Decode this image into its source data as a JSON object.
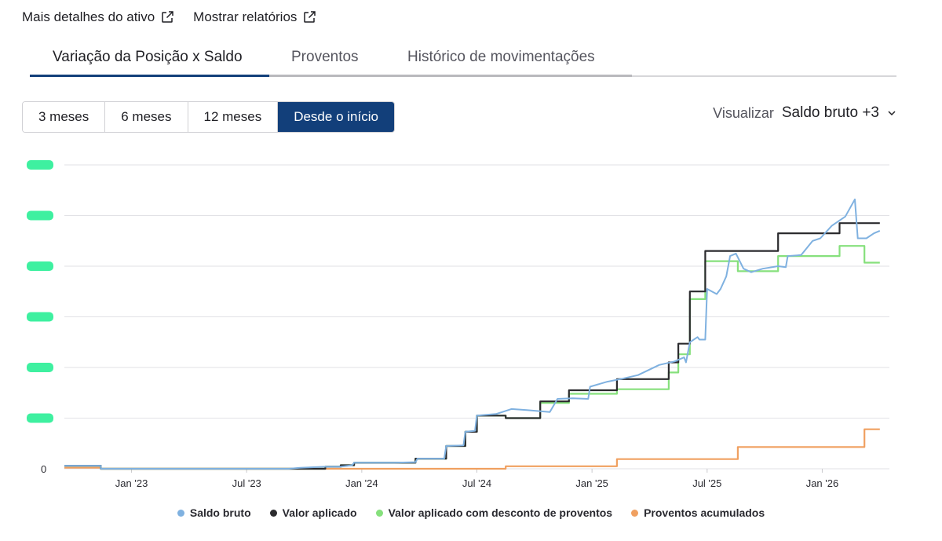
{
  "links": {
    "asset_details": "Mais detalhes do ativo",
    "show_reports": "Mostrar relatórios"
  },
  "tabs": [
    {
      "label": "Variação da Posição x Saldo",
      "active": true
    },
    {
      "label": "Proventos",
      "active": false
    },
    {
      "label": "Histórico de movimentações",
      "active": false
    }
  ],
  "periods": [
    {
      "label": "3 meses",
      "active": false
    },
    {
      "label": "6 meses",
      "active": false
    },
    {
      "label": "12 meses",
      "active": false
    },
    {
      "label": "Desde o início",
      "active": true
    }
  ],
  "visualizar": {
    "label": "Visualizar",
    "selected": "Saldo bruto +3"
  },
  "colors": {
    "accent": "#123f7a",
    "saldo_bruto": "#7fb1e0",
    "valor_aplicado": "#2b2b2e",
    "valor_desconto": "#86e07c",
    "proventos": "#f0a060",
    "redaction": "#3ef0a0",
    "grid": "#e2e2e6"
  },
  "chart_data": {
    "type": "line",
    "title": "",
    "xlabel": "",
    "ylabel": "",
    "ylim": [
      0,
      6
    ],
    "y_ticks": [
      "0",
      "",
      "",
      "",
      "",
      "",
      ""
    ],
    "x_ticks": [
      "Jan '23",
      "Jul '23",
      "Jan '24",
      "Jul '24",
      "Jan '25",
      "Jul '25",
      "Jan '26"
    ],
    "x_tick_months": [
      2,
      8,
      14,
      20,
      26,
      32,
      38
    ],
    "xlim_months": [
      -1.5,
      41.5
    ],
    "series": [
      {
        "name": "Saldo bruto",
        "color": "#7fb1e0",
        "points": [
          [
            -1.5,
            0.06
          ],
          [
            0.4,
            0.06
          ],
          [
            0.4,
            0.0
          ],
          [
            10.2,
            0.0
          ],
          [
            10.8,
            0.02
          ],
          [
            12.1,
            0.04
          ],
          [
            12.9,
            0.04
          ],
          [
            13.5,
            0.07
          ],
          [
            13.6,
            0.12
          ],
          [
            15.7,
            0.12
          ],
          [
            16.8,
            0.13
          ],
          [
            16.9,
            0.2
          ],
          [
            17.8,
            0.2
          ],
          [
            18.3,
            0.2
          ],
          [
            18.4,
            0.45
          ],
          [
            19.3,
            0.46
          ],
          [
            19.4,
            0.73
          ],
          [
            19.9,
            0.75
          ],
          [
            20.0,
            1.05
          ],
          [
            21.0,
            1.08
          ],
          [
            21.8,
            1.18
          ],
          [
            22.6,
            1.16
          ],
          [
            23.5,
            1.13
          ],
          [
            23.8,
            1.12
          ],
          [
            24.2,
            1.38
          ],
          [
            25.0,
            1.39
          ],
          [
            25.8,
            1.38
          ],
          [
            25.9,
            1.62
          ],
          [
            26.8,
            1.72
          ],
          [
            27.6,
            1.78
          ],
          [
            28.4,
            1.85
          ],
          [
            29.5,
            2.05
          ],
          [
            30.3,
            2.12
          ],
          [
            30.8,
            2.2
          ],
          [
            30.9,
            2.1
          ],
          [
            31.1,
            2.5
          ],
          [
            31.5,
            2.6
          ],
          [
            31.6,
            2.55
          ],
          [
            31.9,
            2.55
          ],
          [
            32.0,
            3.55
          ],
          [
            32.5,
            3.45
          ],
          [
            32.7,
            3.55
          ],
          [
            33.0,
            3.8
          ],
          [
            33.2,
            4.2
          ],
          [
            33.5,
            4.25
          ],
          [
            33.9,
            3.95
          ],
          [
            34.3,
            3.88
          ],
          [
            34.9,
            3.95
          ],
          [
            35.7,
            4.0
          ],
          [
            36.1,
            3.98
          ],
          [
            36.2,
            4.2
          ],
          [
            36.9,
            4.22
          ],
          [
            37.5,
            4.5
          ],
          [
            37.9,
            4.55
          ],
          [
            38.5,
            4.8
          ],
          [
            39.2,
            4.98
          ],
          [
            39.7,
            5.32
          ],
          [
            39.85,
            4.55
          ],
          [
            40.3,
            4.55
          ],
          [
            40.7,
            4.65
          ],
          [
            41.0,
            4.7
          ]
        ]
      },
      {
        "name": "Valor aplicado",
        "color": "#2b2b2e",
        "points": [
          [
            -1.5,
            0.06
          ],
          [
            0.4,
            0.06
          ],
          [
            0.4,
            0.0
          ],
          [
            12.1,
            0.0
          ],
          [
            12.1,
            0.04
          ],
          [
            12.9,
            0.04
          ],
          [
            12.9,
            0.07
          ],
          [
            13.6,
            0.07
          ],
          [
            13.6,
            0.12
          ],
          [
            16.8,
            0.12
          ],
          [
            16.8,
            0.2
          ],
          [
            17.8,
            0.2
          ],
          [
            17.8,
            0.2
          ],
          [
            18.4,
            0.2
          ],
          [
            18.4,
            0.45
          ],
          [
            19.4,
            0.45
          ],
          [
            19.4,
            0.73
          ],
          [
            20.0,
            0.73
          ],
          [
            20.0,
            1.05
          ],
          [
            21.5,
            1.05
          ],
          [
            21.5,
            1.0
          ],
          [
            23.3,
            1.0
          ],
          [
            23.3,
            1.33
          ],
          [
            24.8,
            1.33
          ],
          [
            24.8,
            1.55
          ],
          [
            27.3,
            1.55
          ],
          [
            27.3,
            1.77
          ],
          [
            30.0,
            1.77
          ],
          [
            30.0,
            2.1
          ],
          [
            30.5,
            2.1
          ],
          [
            30.5,
            2.47
          ],
          [
            31.1,
            2.47
          ],
          [
            31.1,
            3.5
          ],
          [
            31.9,
            3.5
          ],
          [
            31.9,
            4.3
          ],
          [
            33.6,
            4.3
          ],
          [
            33.6,
            4.3
          ],
          [
            35.7,
            4.3
          ],
          [
            35.7,
            4.65
          ],
          [
            37.5,
            4.65
          ],
          [
            37.5,
            4.65
          ],
          [
            38.9,
            4.65
          ],
          [
            38.9,
            4.85
          ],
          [
            41.0,
            4.85
          ]
        ]
      },
      {
        "name": "Valor aplicado com desconto de proventos",
        "color": "#86e07c",
        "points": [
          [
            -1.5,
            0.06
          ],
          [
            0.4,
            0.06
          ],
          [
            0.4,
            0.0
          ],
          [
            12.1,
            0.0
          ],
          [
            12.1,
            0.04
          ],
          [
            12.9,
            0.04
          ],
          [
            12.9,
            0.07
          ],
          [
            13.6,
            0.07
          ],
          [
            13.6,
            0.12
          ],
          [
            16.8,
            0.12
          ],
          [
            16.8,
            0.2
          ],
          [
            18.4,
            0.2
          ],
          [
            18.4,
            0.45
          ],
          [
            19.4,
            0.45
          ],
          [
            19.4,
            0.73
          ],
          [
            20.0,
            0.73
          ],
          [
            20.0,
            1.05
          ],
          [
            21.5,
            1.05
          ],
          [
            21.5,
            1.0
          ],
          [
            23.3,
            1.0
          ],
          [
            23.3,
            1.3
          ],
          [
            24.8,
            1.3
          ],
          [
            24.8,
            1.48
          ],
          [
            27.3,
            1.48
          ],
          [
            27.3,
            1.57
          ],
          [
            30.0,
            1.57
          ],
          [
            30.0,
            1.9
          ],
          [
            30.5,
            1.9
          ],
          [
            30.5,
            2.26
          ],
          [
            31.1,
            2.26
          ],
          [
            31.1,
            3.35
          ],
          [
            31.9,
            3.35
          ],
          [
            31.9,
            4.1
          ],
          [
            33.6,
            4.1
          ],
          [
            33.6,
            3.9
          ],
          [
            35.7,
            3.9
          ],
          [
            35.7,
            4.2
          ],
          [
            38.9,
            4.2
          ],
          [
            38.9,
            4.4
          ],
          [
            40.2,
            4.4
          ],
          [
            40.2,
            4.07
          ],
          [
            41.0,
            4.07
          ]
        ]
      },
      {
        "name": "Proventos acumulados",
        "color": "#f0a060",
        "points": [
          [
            -1.5,
            0.02
          ],
          [
            0.4,
            0.02
          ],
          [
            0.4,
            0.0
          ],
          [
            21.5,
            0.0
          ],
          [
            21.5,
            0.05
          ],
          [
            27.3,
            0.05
          ],
          [
            27.3,
            0.19
          ],
          [
            33.6,
            0.19
          ],
          [
            33.6,
            0.43
          ],
          [
            40.2,
            0.43
          ],
          [
            40.2,
            0.78
          ],
          [
            41.0,
            0.78
          ]
        ]
      }
    ],
    "legend": [
      "Saldo bruto",
      "Valor aplicado",
      "Valor aplicado com desconto de proventos",
      "Proventos acumulados"
    ]
  }
}
